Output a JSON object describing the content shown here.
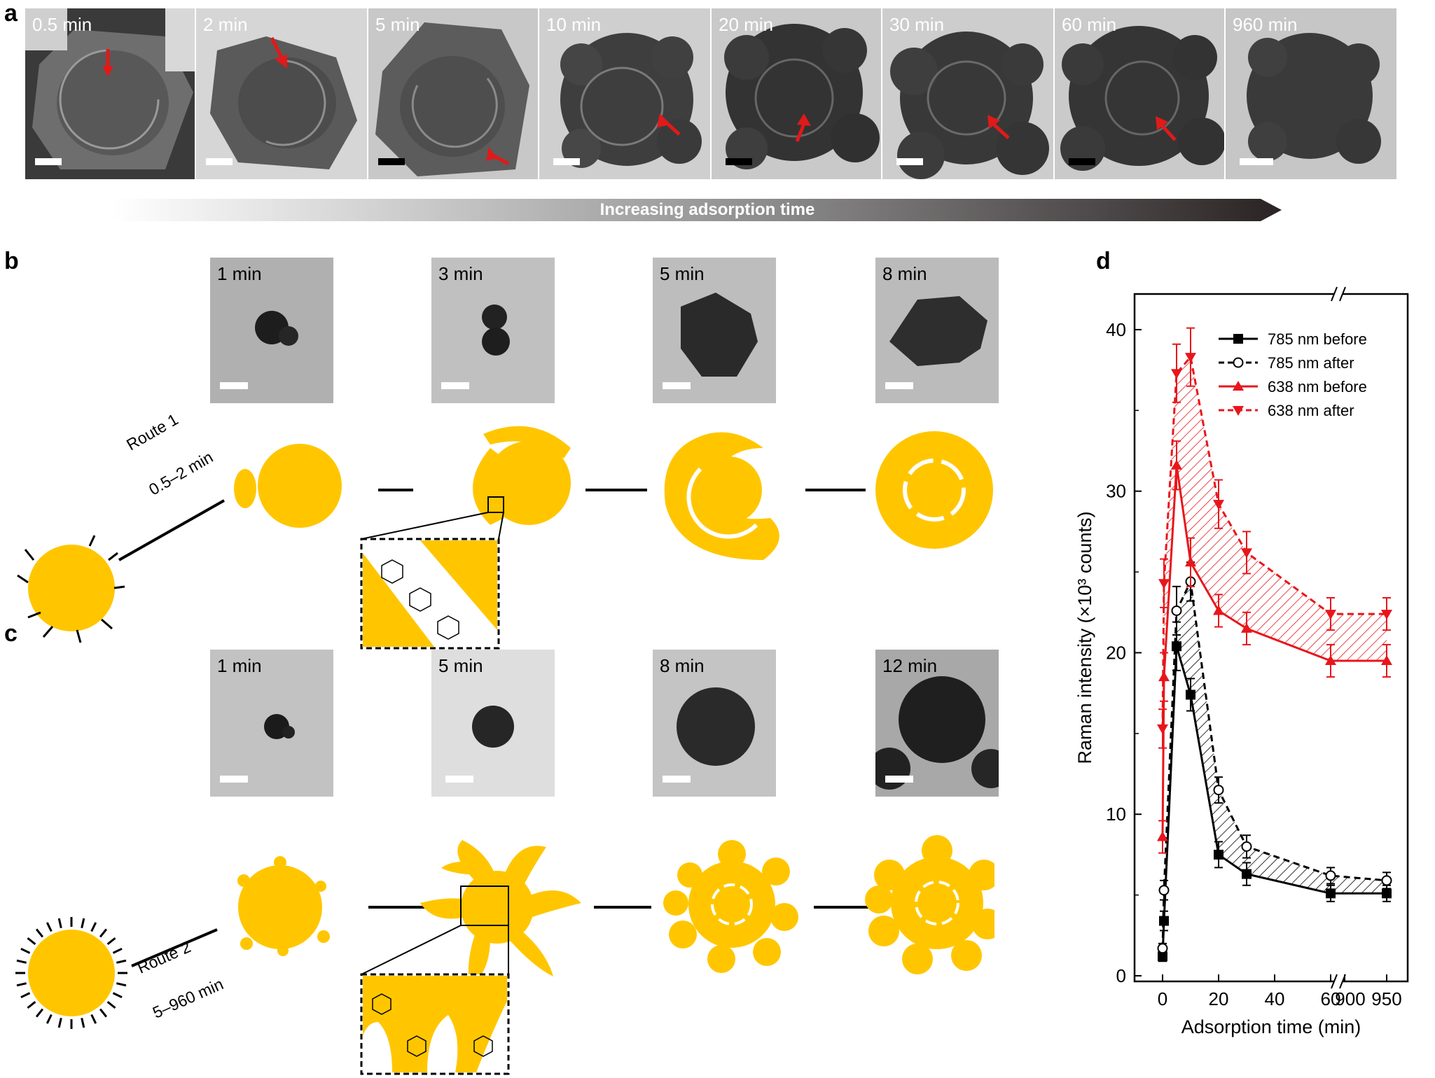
{
  "panel_labels": {
    "a": "a",
    "b": "b",
    "c": "c",
    "d": "d"
  },
  "panel_a": {
    "frames": [
      "0.5 min",
      "2 min",
      "5 min",
      "10 min",
      "20 min",
      "30 min",
      "60 min",
      "960 min"
    ],
    "arrow_text": "Increasing adsorption time"
  },
  "panel_b": {
    "frames": [
      "1 min",
      "3 min",
      "5 min",
      "8 min"
    ],
    "route_name": "Route 1",
    "route_time": "0.5–2 min"
  },
  "panel_c": {
    "frames": [
      "1 min",
      "5 min",
      "8 min",
      "12 min"
    ],
    "route_name": "Route 2",
    "route_time": "5–960 min"
  },
  "colors": {
    "gold": "#FFC600",
    "red": "#E8161B",
    "black": "#000000"
  },
  "chart_data": {
    "type": "line",
    "xlabel": "Adsorption time (min)",
    "ylabel": "Raman intensity (×10³ counts)",
    "xticks": [
      0,
      20,
      40,
      60,
      900,
      950
    ],
    "yticks": [
      0,
      10,
      20,
      30,
      40
    ],
    "ylim": [
      0,
      40
    ],
    "x_axis_break": [
      60,
      900
    ],
    "legend_position": "top-right",
    "series": [
      {
        "name": "785 nm before",
        "color": "#000000",
        "dash": "solid",
        "marker": "filled-square",
        "x": [
          0,
          0.5,
          5,
          10,
          20,
          30,
          60,
          960
        ],
        "y": [
          1.2,
          3.4,
          20.4,
          17.4,
          7.5,
          6.3,
          5.1,
          5.1
        ],
        "err": [
          0.3,
          0.6,
          1.5,
          1.0,
          0.8,
          0.7,
          0.5,
          0.5
        ]
      },
      {
        "name": "785 nm after",
        "color": "#000000",
        "dash": "dashed",
        "marker": "open-circle",
        "x": [
          0,
          0.5,
          5,
          10,
          20,
          30,
          60,
          960
        ],
        "y": [
          1.7,
          5.3,
          22.6,
          24.4,
          11.5,
          8.0,
          6.2,
          5.9
        ],
        "err": [
          0.3,
          0.6,
          1.5,
          1.2,
          0.8,
          0.7,
          0.5,
          0.5
        ]
      },
      {
        "name": "638 nm before",
        "color": "#E8161B",
        "dash": "solid",
        "marker": "filled-up-triangle",
        "x": [
          0,
          0.5,
          5,
          10,
          20,
          30,
          60,
          960
        ],
        "y": [
          8.6,
          18.5,
          31.6,
          25.6,
          22.6,
          21.5,
          19.5,
          19.5
        ],
        "err": [
          1.0,
          1.5,
          1.5,
          1.5,
          1.0,
          1.0,
          1.0,
          1.0
        ]
      },
      {
        "name": "638 nm after",
        "color": "#E8161B",
        "dash": "dashed",
        "marker": "filled-down-triangle",
        "x": [
          0,
          0.5,
          5,
          10,
          20,
          30,
          60,
          960
        ],
        "y": [
          15.3,
          24.3,
          37.3,
          38.3,
          29.2,
          26.2,
          22.4,
          22.4
        ],
        "err": [
          1.2,
          1.5,
          1.8,
          1.8,
          1.5,
          1.3,
          1.0,
          1.0
        ]
      }
    ]
  }
}
